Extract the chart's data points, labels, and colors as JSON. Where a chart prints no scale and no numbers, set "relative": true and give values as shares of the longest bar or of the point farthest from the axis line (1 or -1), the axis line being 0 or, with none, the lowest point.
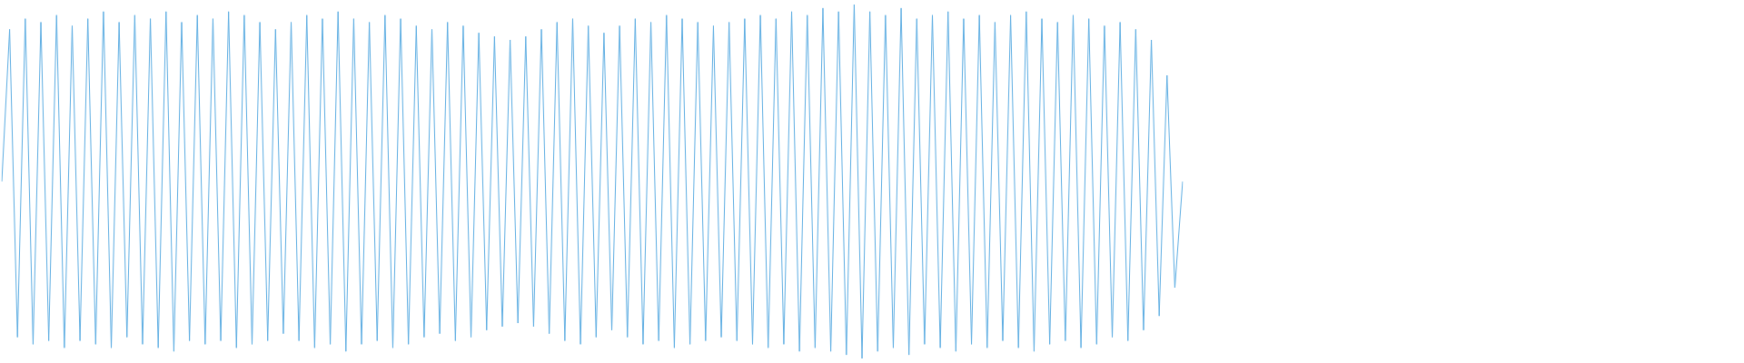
{
  "chart_data": {
    "type": "line",
    "relative": true,
    "marker": "none",
    "legend": false,
    "categories": [
      null,
      null,
      null,
      null,
      null,
      null,
      null,
      null,
      null,
      null,
      null,
      null,
      null,
      null,
      null,
      null,
      null,
      null,
      null,
      null,
      null,
      null,
      null,
      null,
      null,
      null,
      null,
      null,
      null,
      null,
      null,
      null,
      null,
      null,
      null,
      null,
      null,
      null,
      null,
      null,
      null,
      null,
      null,
      null,
      null,
      null,
      null,
      null,
      null,
      null,
      null,
      null,
      null,
      null,
      null,
      null,
      null,
      null,
      null,
      null,
      null,
      null,
      null,
      null,
      null,
      null,
      null,
      null,
      null,
      null,
      null,
      null,
      null,
      null,
      null,
      null,
      null,
      null,
      null,
      null,
      null,
      null,
      null,
      null,
      null,
      null,
      null,
      null,
      null,
      null,
      null,
      null,
      null,
      null,
      null,
      null,
      null,
      null,
      null,
      null,
      null,
      null,
      null,
      null,
      null,
      null,
      null,
      null,
      null,
      null,
      null,
      null,
      null,
      null,
      null,
      null,
      null,
      null,
      null,
      null,
      null,
      null,
      null,
      null,
      null,
      null,
      null,
      null,
      null,
      null,
      null,
      null,
      null,
      null,
      null,
      null,
      null,
      null,
      null,
      null,
      null,
      null,
      null,
      null,
      null,
      null,
      null,
      null,
      null,
      null,
      null,
      null
    ],
    "series": [
      {
        "color": "#5dade2",
        "values": [
          0.5,
          0.93,
          0.06,
          0.96,
          0.04,
          0.95,
          0.05,
          0.97,
          0.03,
          0.94,
          0.05,
          0.96,
          0.04,
          0.98,
          0.03,
          0.95,
          0.06,
          0.97,
          0.04,
          0.96,
          0.03,
          0.98,
          0.02,
          0.95,
          0.05,
          0.97,
          0.04,
          0.96,
          0.05,
          0.98,
          0.03,
          0.97,
          0.04,
          0.95,
          0.05,
          0.93,
          0.07,
          0.95,
          0.05,
          0.97,
          0.03,
          0.96,
          0.04,
          0.98,
          0.02,
          0.96,
          0.04,
          0.95,
          0.05,
          0.97,
          0.03,
          0.96,
          0.04,
          0.94,
          0.06,
          0.93,
          0.07,
          0.95,
          0.05,
          0.94,
          0.06,
          0.92,
          0.08,
          0.91,
          0.09,
          0.9,
          0.1,
          0.91,
          0.09,
          0.93,
          0.07,
          0.95,
          0.05,
          0.96,
          0.04,
          0.94,
          0.06,
          0.92,
          0.08,
          0.94,
          0.06,
          0.96,
          0.04,
          0.95,
          0.05,
          0.97,
          0.03,
          0.96,
          0.04,
          0.95,
          0.05,
          0.94,
          0.06,
          0.95,
          0.05,
          0.96,
          0.04,
          0.97,
          0.03,
          0.96,
          0.04,
          0.98,
          0.02,
          0.97,
          0.03,
          0.99,
          0.02,
          0.98,
          0.01,
          1,
          0,
          0.98,
          0.02,
          0.97,
          0.03,
          0.99,
          0.01,
          0.96,
          0.04,
          0.97,
          0.03,
          0.98,
          0.02,
          0.96,
          0.04,
          0.97,
          0.03,
          0.95,
          0.05,
          0.97,
          0.03,
          0.98,
          0.02,
          0.96,
          0.04,
          0.95,
          0.05,
          0.97,
          0.03,
          0.96,
          0.04,
          0.94,
          0.06,
          0.95,
          0.05,
          0.93,
          0.08,
          0.9,
          0.12,
          0.8,
          0.2,
          0.5
        ]
      }
    ]
  }
}
